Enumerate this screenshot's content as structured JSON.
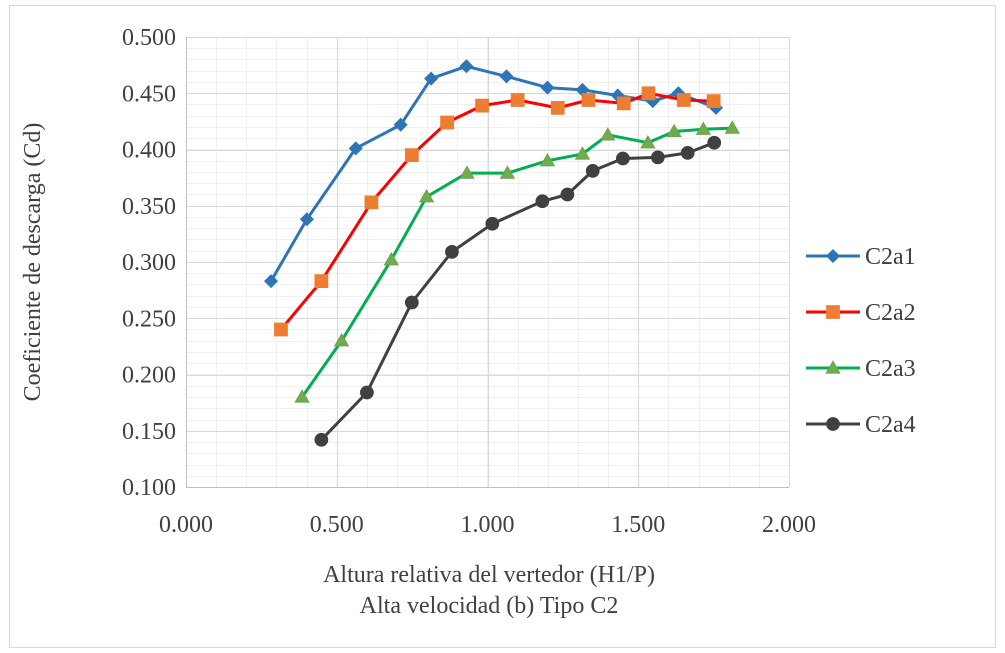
{
  "chart_data": {
    "type": "line",
    "xlabel": "Altura relativa del vertedor (H1/P)",
    "subtitle": "Alta velocidad (b) Tipo C2",
    "ylabel": "Coeficiente de descarga (Cd)",
    "xlim": [
      0,
      2
    ],
    "ylim": [
      0.1,
      0.5
    ],
    "x_ticks": [
      "0.000",
      "0.500",
      "1.000",
      "1.500",
      "2.000"
    ],
    "y_ticks": [
      "0.100",
      "0.150",
      "0.200",
      "0.250",
      "0.300",
      "0.350",
      "0.400",
      "0.450",
      "0.500"
    ],
    "x_major_step": 0.5,
    "x_minor_step": 0.1,
    "y_major_step": 0.05,
    "y_minor_step": 0.01,
    "grid": true,
    "legend_position": "right",
    "series": [
      {
        "name": "C2a1",
        "color": "#2E75B6",
        "marker": "diamond",
        "x": [
          0.282,
          0.401,
          0.563,
          0.712,
          0.813,
          0.93,
          1.063,
          1.199,
          1.315,
          1.432,
          1.548,
          1.633,
          1.758
        ],
        "y": [
          0.283,
          0.338,
          0.401,
          0.422,
          0.463,
          0.474,
          0.465,
          0.455,
          0.453,
          0.448,
          0.443,
          0.45,
          0.437
        ]
      },
      {
        "name": "C2a2",
        "color": "#FF0000",
        "markerColor": "#ED7D31",
        "marker": "square",
        "x": [
          0.315,
          0.449,
          0.615,
          0.749,
          0.866,
          0.982,
          1.1,
          1.233,
          1.335,
          1.452,
          1.534,
          1.651,
          1.75
        ],
        "y": [
          0.24,
          0.283,
          0.353,
          0.395,
          0.424,
          0.439,
          0.444,
          0.437,
          0.444,
          0.441,
          0.45,
          0.444,
          0.443
        ]
      },
      {
        "name": "C2a3",
        "color": "#00B050",
        "markerColor": "#70AD47",
        "marker": "triangle",
        "x": [
          0.385,
          0.516,
          0.681,
          0.798,
          0.932,
          1.066,
          1.199,
          1.315,
          1.399,
          1.532,
          1.619,
          1.716,
          1.812
        ],
        "y": [
          0.18,
          0.23,
          0.302,
          0.358,
          0.379,
          0.379,
          0.39,
          0.396,
          0.413,
          0.406,
          0.416,
          0.418,
          0.419
        ]
      },
      {
        "name": "C2a4",
        "color": "#404040",
        "marker": "circle",
        "x": [
          0.449,
          0.6,
          0.749,
          0.882,
          1.016,
          1.182,
          1.265,
          1.349,
          1.449,
          1.565,
          1.664,
          1.752
        ],
        "y": [
          0.142,
          0.184,
          0.264,
          0.309,
          0.334,
          0.354,
          0.36,
          0.381,
          0.392,
          0.393,
          0.397,
          0.406
        ]
      }
    ]
  }
}
